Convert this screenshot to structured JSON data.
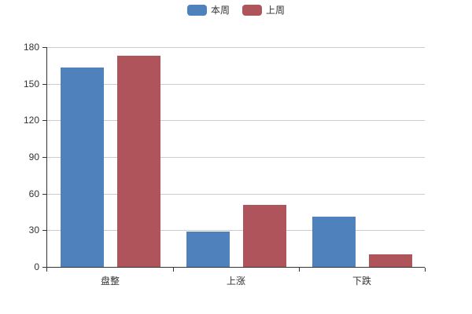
{
  "chart_data": {
    "type": "bar",
    "title": "",
    "xlabel": "",
    "ylabel": "",
    "categories": [
      "盘整",
      "上涨",
      "下跌"
    ],
    "series": [
      {
        "name": "本周",
        "color": "#4F81BC",
        "values": [
          163,
          29,
          41
        ]
      },
      {
        "name": "上周",
        "color": "#AE545A",
        "values": [
          173,
          51,
          10
        ]
      }
    ],
    "ylim": [
      0,
      180
    ],
    "ytick_interval": 30,
    "ytick_labels": [
      "0",
      "30",
      "60",
      "90",
      "120",
      "150",
      "180"
    ],
    "grid": true,
    "legend_position": "top-center",
    "axis_color": "#333333",
    "gridline_color": "#cccccc",
    "label_color": "#333333"
  }
}
